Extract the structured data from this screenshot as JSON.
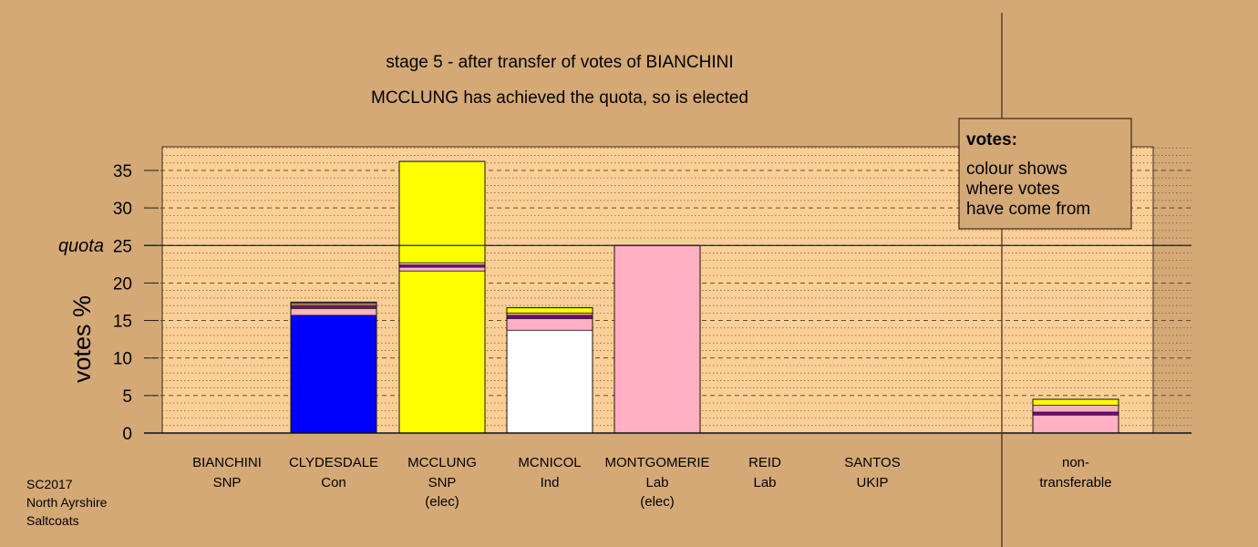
{
  "chart_data": {
    "type": "bar",
    "stacked": true,
    "title": "stage 5 - after transfer of votes of BIANCHINI",
    "subtitle": "MCCLUNG has achieved the quota, so is elected",
    "ylabel": "votes %",
    "ylim": [
      0,
      38
    ],
    "yticks": [
      0,
      5,
      10,
      15,
      20,
      25,
      30,
      35
    ],
    "quota": 25,
    "quota_label": "quota",
    "grid": true,
    "legend": {
      "title": "votes:",
      "lines": [
        "colour shows",
        "where votes",
        "have come from"
      ],
      "placement": "top-right"
    },
    "footer": [
      "SC2017",
      "North Ayrshire",
      "Saltcoats"
    ],
    "colors": {
      "SNP": "#ffff00",
      "Con": "#0000ff",
      "Ind": "#ffffff",
      "Lab": "#ffb0c4",
      "UKIP": "#800080",
      "background": "#d4a976",
      "plot_bg": "#fdcf97"
    },
    "categories": [
      {
        "name": "BIANCHINI",
        "party": "SNP",
        "note": "",
        "segments": []
      },
      {
        "name": "CLYDESDALE",
        "party": "Con",
        "note": "",
        "segments": [
          {
            "source": "Con",
            "value": 15.7
          },
          {
            "source": "Lab",
            "value": 0.9
          },
          {
            "source": "UKIP",
            "value": 0.35
          },
          {
            "source": "Lab",
            "value": 0.2
          },
          {
            "source": "SNP",
            "value": 0.15
          },
          {
            "source": "Ind",
            "value": 0.15
          }
        ]
      },
      {
        "name": "MCCLUNG",
        "party": "SNP",
        "note": "(elec)",
        "segments": [
          {
            "source": "SNP",
            "value": 21.6
          },
          {
            "source": "Lab",
            "value": 0.5
          },
          {
            "source": "UKIP",
            "value": 0.3
          },
          {
            "source": "Lab",
            "value": 0.3
          },
          {
            "source": "SNP",
            "value": 13.5
          }
        ]
      },
      {
        "name": "MCNICOL",
        "party": "Ind",
        "note": "",
        "segments": [
          {
            "source": "Ind",
            "value": 13.7
          },
          {
            "source": "Lab",
            "value": 1.55
          },
          {
            "source": "UKIP",
            "value": 0.45
          },
          {
            "source": "Lab",
            "value": 0.3
          },
          {
            "source": "SNP",
            "value": 0.7
          }
        ]
      },
      {
        "name": "MONTGOMERIE",
        "party": "Lab",
        "note": "(elec)",
        "segments": [
          {
            "source": "Lab",
            "value": 25.0
          }
        ]
      },
      {
        "name": "REID",
        "party": "Lab",
        "note": "",
        "segments": []
      },
      {
        "name": "SANTOS",
        "party": "UKIP",
        "note": "",
        "segments": []
      },
      {
        "name": "non-",
        "party": "transferable",
        "note": "",
        "segments": [
          {
            "source": "Lab",
            "value": 2.4
          },
          {
            "source": "UKIP",
            "value": 0.4
          },
          {
            "source": "Lab",
            "value": 0.9
          },
          {
            "source": "SNP",
            "value": 0.8
          }
        ]
      }
    ]
  }
}
